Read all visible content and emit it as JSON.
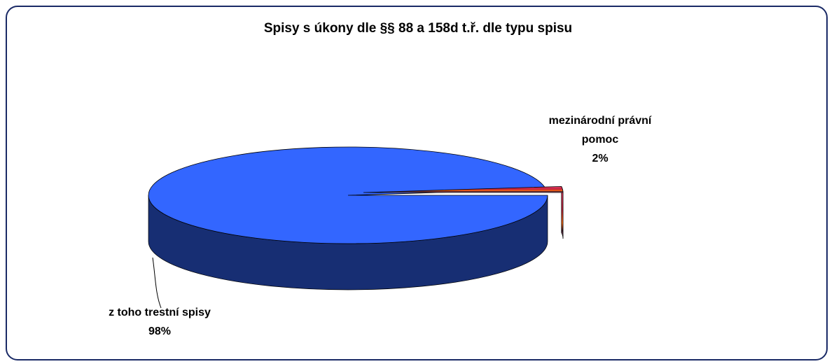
{
  "chart_data": {
    "type": "pie",
    "title": "Spisy s úkony dle §§ 88 a 158d t.ř. dle typu spisu",
    "categories": [
      "z toho trestní spisy",
      "mezinárodní právní pomoc"
    ],
    "values": [
      98,
      2
    ],
    "value_labels": [
      "98%",
      "2%"
    ],
    "colors": [
      "#3366ff",
      "#e8406a"
    ],
    "exploded": [
      false,
      true
    ]
  }
}
